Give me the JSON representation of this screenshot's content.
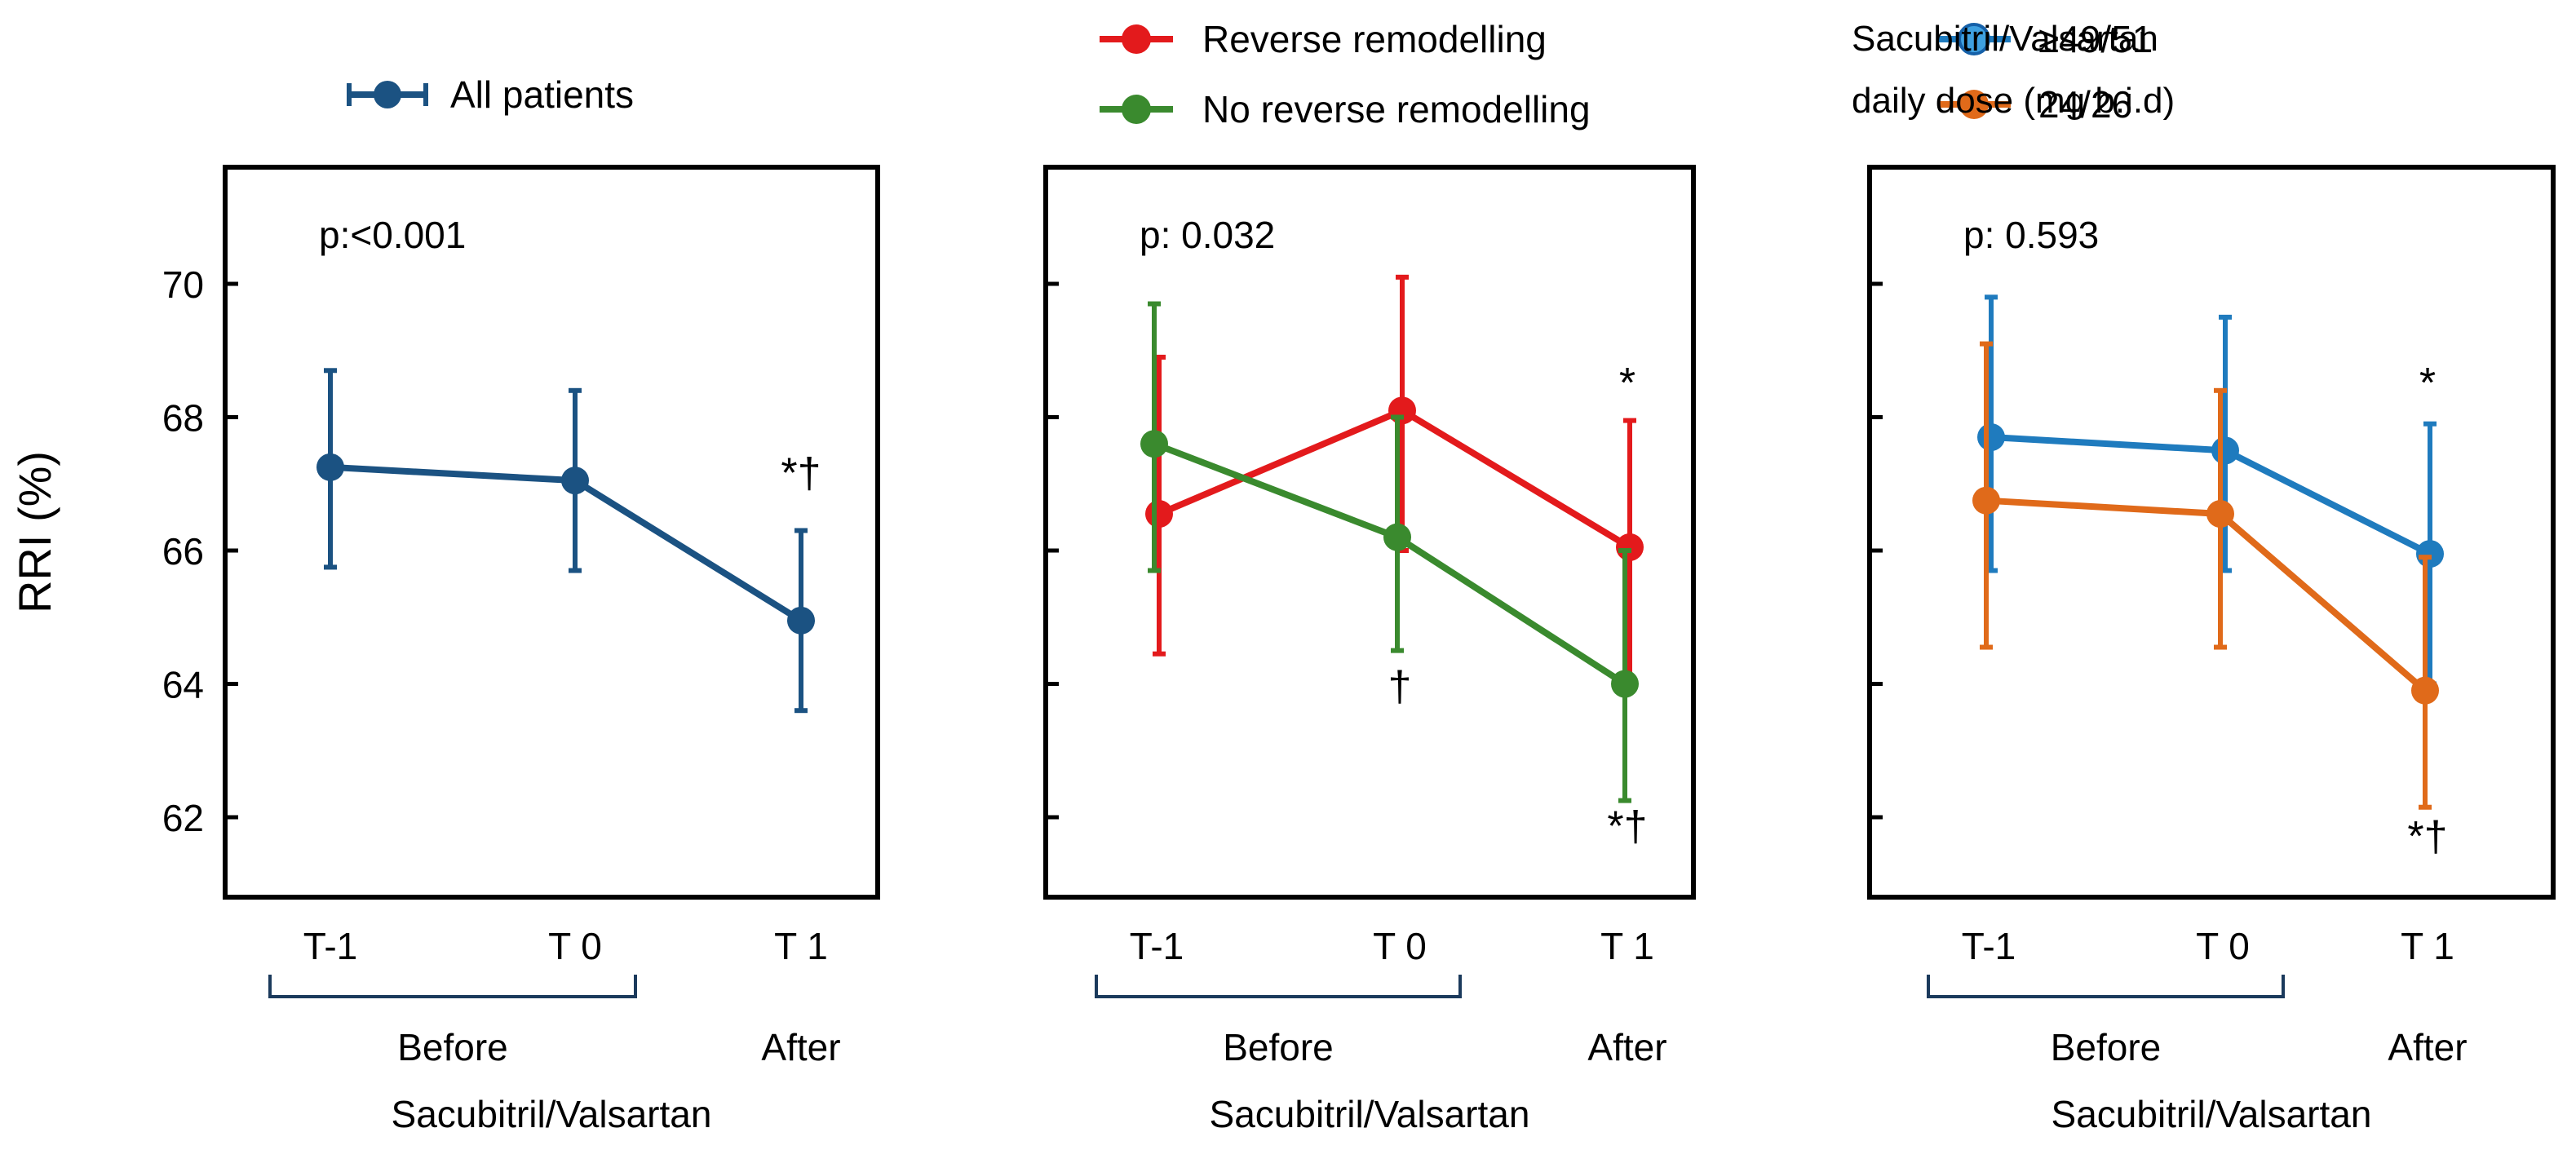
{
  "chart_data": [
    {
      "type": "line",
      "ylabel": "RRI (%)",
      "ylim": [
        61,
        71.75
      ],
      "yticks": [
        62,
        64,
        66,
        68,
        70
      ],
      "ytick_labels": [
        "62",
        "64",
        "66",
        "68",
        "70"
      ],
      "categories": [
        "T-1",
        "T 0",
        "T 1"
      ],
      "group_labels": [
        "Before",
        "After"
      ],
      "xlabel": "Sacubitril/Valsartan",
      "p_label": "p:<0.001",
      "legend_title": "",
      "series": [
        {
          "name": "All patients",
          "color": "#1B5282",
          "values": [
            67.25,
            67.05,
            64.95
          ],
          "err_low": [
            65.75,
            65.7,
            63.6
          ],
          "err_high": [
            68.7,
            68.4,
            66.3
          ]
        }
      ],
      "annotations": [
        {
          "text": "*†",
          "x": "T 1",
          "y": 66.95
        }
      ]
    },
    {
      "type": "line",
      "ylabel": "",
      "ylim": [
        61,
        71.75
      ],
      "yticks": [
        62,
        64,
        66,
        68,
        70
      ],
      "ytick_labels": [],
      "categories": [
        "T-1",
        "T 0",
        "T 1"
      ],
      "group_labels": [
        "Before",
        "After"
      ],
      "xlabel": "Sacubitril/Valsartan",
      "p_label": "p: 0.032",
      "legend_title": "",
      "series": [
        {
          "name": "Reverse remodelling",
          "color": "#E31A1C",
          "values": [
            66.55,
            68.1,
            66.05
          ],
          "err_low": [
            64.45,
            66.0,
            64.0
          ],
          "err_high": [
            68.9,
            70.1,
            67.95
          ]
        },
        {
          "name": "No reverse remodelling",
          "color": "#3A8A2E",
          "values": [
            67.6,
            66.2,
            64.0
          ],
          "err_low": [
            65.7,
            64.5,
            62.25
          ],
          "err_high": [
            69.7,
            68.0,
            66.0
          ]
        }
      ],
      "annotations": [
        {
          "text": "*",
          "x": "T 1",
          "y": 68.3
        },
        {
          "text": "†",
          "x": "T 0",
          "y": 63.75
        },
        {
          "text": "*†",
          "x": "T 1",
          "y": 61.65
        }
      ]
    },
    {
      "type": "line",
      "ylabel": "",
      "ylim": [
        61,
        71.75
      ],
      "yticks": [
        62,
        64,
        66,
        68,
        70
      ],
      "ytick_labels": [],
      "categories": [
        "T-1",
        "T 0",
        "T 1"
      ],
      "group_labels": [
        "Before",
        "After"
      ],
      "xlabel": "Sacubitril/Valsartan",
      "p_label": "p: 0.593",
      "legend_title": [
        "Sacubitril/Valsartan",
        "daily dose (mg b.i.d)"
      ],
      "series": [
        {
          "name": "≥49/51",
          "color": "#1F7BBE",
          "values": [
            67.7,
            67.5,
            65.95
          ],
          "err_low": [
            65.7,
            65.7,
            64.0
          ],
          "err_high": [
            69.8,
            69.5,
            67.9
          ]
        },
        {
          "name": "24/26",
          "color": "#E06A1A",
          "values": [
            66.75,
            66.55,
            63.9
          ],
          "err_low": [
            64.55,
            64.55,
            62.15
          ],
          "err_high": [
            69.1,
            68.4,
            65.9
          ]
        }
      ],
      "annotations": [
        {
          "text": "*",
          "x": "T 1",
          "y": 68.3
        },
        {
          "text": "*†",
          "x": "T 1",
          "y": 61.5
        }
      ]
    }
  ]
}
